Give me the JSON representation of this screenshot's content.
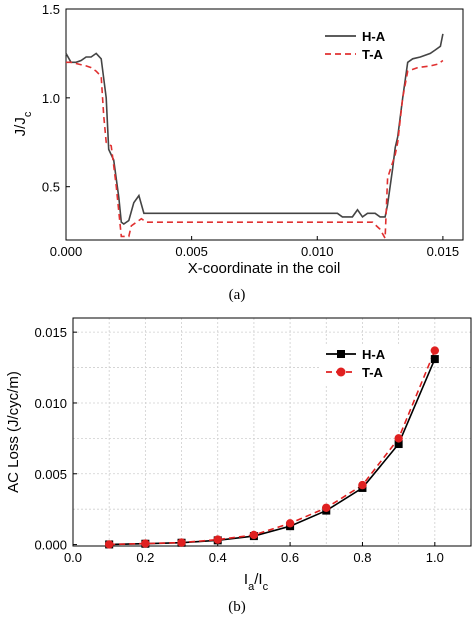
{
  "chart_data": [
    {
      "type": "line",
      "caption": "(a)",
      "xlabel": "X-coordinate in the coil",
      "ylabel": {
        "main": "J/J",
        "sub": "c"
      },
      "xlim": [
        0,
        0.0158
      ],
      "ylim": [
        0.2,
        1.5
      ],
      "xticks": [
        {
          "v": 0.0,
          "label": "0.000"
        },
        {
          "v": 0.005,
          "label": "0.005"
        },
        {
          "v": 0.01,
          "label": "0.010"
        },
        {
          "v": 0.015,
          "label": "0.015"
        }
      ],
      "yticks": [
        {
          "v": 0.5,
          "label": "0.5"
        },
        {
          "v": 1.0,
          "label": "1.0"
        },
        {
          "v": 1.5,
          "label": "1.5"
        }
      ],
      "grid": false,
      "legend": "top-right",
      "series": [
        {
          "name": "H-A",
          "color": "#444444",
          "dash": "",
          "points": [
            [
              0,
              1.25
            ],
            [
              0.0002,
              1.2
            ],
            [
              0.0004,
              1.2
            ],
            [
              0.0006,
              1.21
            ],
            [
              0.0008,
              1.23
            ],
            [
              0.001,
              1.23
            ],
            [
              0.0012,
              1.25
            ],
            [
              0.0014,
              1.22
            ],
            [
              0.0016,
              1.0
            ],
            [
              0.0017,
              0.71
            ],
            [
              0.0019,
              0.65
            ],
            [
              0.0021,
              0.44
            ],
            [
              0.0022,
              0.3
            ],
            [
              0.0023,
              0.29
            ],
            [
              0.0025,
              0.31
            ],
            [
              0.0027,
              0.41
            ],
            [
              0.0029,
              0.45
            ],
            [
              0.0031,
              0.35
            ],
            [
              0.005,
              0.35
            ],
            [
              0.008,
              0.35
            ],
            [
              0.0108,
              0.35
            ],
            [
              0.011,
              0.33
            ],
            [
              0.0114,
              0.33
            ],
            [
              0.0116,
              0.37
            ],
            [
              0.0118,
              0.33
            ],
            [
              0.012,
              0.35
            ],
            [
              0.0123,
              0.35
            ],
            [
              0.0125,
              0.33
            ],
            [
              0.0127,
              0.33
            ],
            [
              0.0128,
              0.4
            ],
            [
              0.013,
              0.6
            ],
            [
              0.0131,
              0.72
            ],
            [
              0.0132,
              0.78
            ],
            [
              0.0134,
              1.0
            ],
            [
              0.0136,
              1.2
            ],
            [
              0.0138,
              1.22
            ],
            [
              0.0141,
              1.23
            ],
            [
              0.0145,
              1.25
            ],
            [
              0.0147,
              1.27
            ],
            [
              0.0149,
              1.29
            ],
            [
              0.015,
              1.36
            ]
          ]
        },
        {
          "name": "T-A",
          "color": "#e03030",
          "dash": "6 4",
          "points": [
            [
              0,
              1.2
            ],
            [
              0.0002,
              1.2
            ],
            [
              0.0005,
              1.19
            ],
            [
              0.0008,
              1.18
            ],
            [
              0.001,
              1.17
            ],
            [
              0.0012,
              1.15
            ],
            [
              0.0014,
              1.12
            ],
            [
              0.0015,
              0.9
            ],
            [
              0.0016,
              0.75
            ],
            [
              0.0018,
              0.73
            ],
            [
              0.0019,
              0.62
            ],
            [
              0.002,
              0.5
            ],
            [
              0.0022,
              0.22
            ],
            [
              0.0025,
              0.22
            ],
            [
              0.0026,
              0.28
            ],
            [
              0.0028,
              0.3
            ],
            [
              0.003,
              0.32
            ],
            [
              0.0032,
              0.3
            ],
            [
              0.005,
              0.3
            ],
            [
              0.008,
              0.3
            ],
            [
              0.0115,
              0.3
            ],
            [
              0.0122,
              0.3
            ],
            [
              0.0125,
              0.26
            ],
            [
              0.0127,
              0.21
            ],
            [
              0.0128,
              0.55
            ],
            [
              0.0131,
              0.68
            ],
            [
              0.0132,
              0.75
            ],
            [
              0.0134,
              1.0
            ],
            [
              0.0136,
              1.15
            ],
            [
              0.014,
              1.17
            ],
            [
              0.0145,
              1.18
            ],
            [
              0.0148,
              1.19
            ],
            [
              0.015,
              1.21
            ]
          ]
        }
      ]
    },
    {
      "type": "line",
      "caption": "(b)",
      "xlabel": {
        "main": "I",
        "sub1": "a",
        "sep": "/I",
        "sub2": "c"
      },
      "ylabel": "AC Loss (J/cyc/m)",
      "xlim": [
        0,
        1.1
      ],
      "ylim": [
        -0.0001,
        0.016
      ],
      "xticks": [
        {
          "v": 0.0,
          "label": "0.0"
        },
        {
          "v": 0.2,
          "label": "0.2"
        },
        {
          "v": 0.4,
          "label": "0.4"
        },
        {
          "v": 0.6,
          "label": "0.6"
        },
        {
          "v": 0.8,
          "label": "0.8"
        },
        {
          "v": 1.0,
          "label": "1.0"
        }
      ],
      "yticks": [
        {
          "v": 0.0,
          "label": "0.000"
        },
        {
          "v": 0.005,
          "label": "0.005"
        },
        {
          "v": 0.01,
          "label": "0.010"
        },
        {
          "v": 0.015,
          "label": "0.015"
        }
      ],
      "grid": true,
      "legend": "top-right",
      "series": [
        {
          "name": "H-A",
          "color": "#000000",
          "marker": "square",
          "dash": "",
          "x": [
            0.1,
            0.2,
            0.3,
            0.4,
            0.5,
            0.6,
            0.7,
            0.8,
            0.9,
            1.0
          ],
          "values": [
            1e-05,
            6e-05,
            0.00013,
            0.0003,
            0.0006,
            0.0013,
            0.0024,
            0.004,
            0.0071,
            0.0131
          ]
        },
        {
          "name": "T-A",
          "color": "#e02020",
          "marker": "circle",
          "dash": "6 4",
          "x": [
            0.1,
            0.2,
            0.3,
            0.4,
            0.5,
            0.6,
            0.7,
            0.8,
            0.9,
            1.0
          ],
          "values": [
            1e-05,
            7e-05,
            0.00014,
            0.00035,
            0.00068,
            0.0015,
            0.0026,
            0.0042,
            0.0075,
            0.0137
          ]
        }
      ]
    }
  ]
}
